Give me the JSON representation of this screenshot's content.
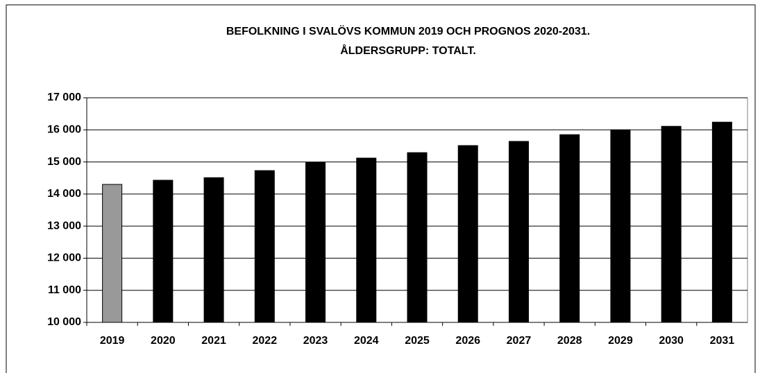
{
  "chart_data": {
    "type": "bar",
    "title": [
      "BEFOLKNING I SVALÖVS KOMMUN 2019 OCH PROGNOS 2020-2031.",
      "ÅLDERSGRUPP: TOTALT."
    ],
    "categories": [
      "2019",
      "2020",
      "2021",
      "2022",
      "2023",
      "2024",
      "2025",
      "2026",
      "2027",
      "2028",
      "2029",
      "2030",
      "2031"
    ],
    "values": [
      14300,
      14430,
      14510,
      14730,
      14990,
      15120,
      15290,
      15510,
      15640,
      15850,
      16000,
      16110,
      16240
    ],
    "colors": [
      "#999999",
      "#000000",
      "#000000",
      "#000000",
      "#000000",
      "#000000",
      "#000000",
      "#000000",
      "#000000",
      "#000000",
      "#000000",
      "#000000",
      "#000000"
    ],
    "ylim": [
      10000,
      17000
    ],
    "yticks": [
      {
        "value": 10000,
        "label": "10 000"
      },
      {
        "value": 11000,
        "label": "11 000"
      },
      {
        "value": 12000,
        "label": "12 000"
      },
      {
        "value": 13000,
        "label": "13 000"
      },
      {
        "value": 14000,
        "label": "14 000"
      },
      {
        "value": 15000,
        "label": "15 000"
      },
      {
        "value": 16000,
        "label": "16 000"
      },
      {
        "value": 17000,
        "label": "17 000"
      }
    ],
    "grid": true
  }
}
